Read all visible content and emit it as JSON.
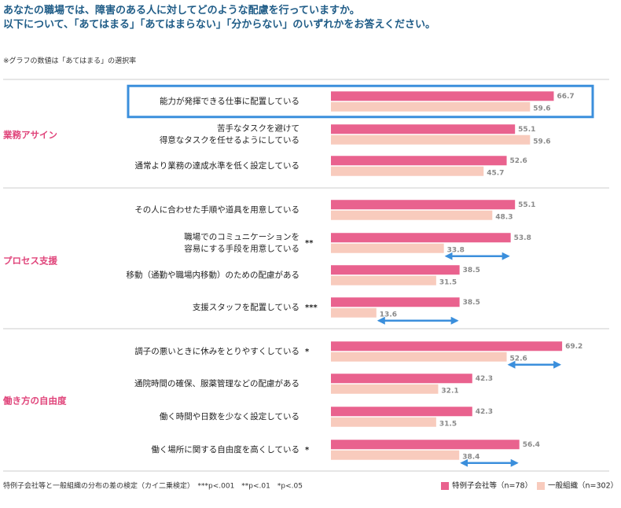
{
  "title_line1": "あなたの職場では、障害のある人に対してどのような配慮を行っていますか。",
  "title_line2": "以下について、「あてはまる」「あてはまらない」「分からない」のいずれかをお答えください。",
  "note": "※グラフの数値は「あてはまる」の選択率",
  "footnote": "特例子会社等と一般組織の分布の差の検定（カイ二乗検定）　***p<.001　**p<.01　*p<.05",
  "colors": {
    "series1": "#e9628e",
    "series2": "#f8cbbd",
    "highlight": "#3b8fdc",
    "arrow": "#3b8fdc",
    "divider": "#bbbbbb",
    "section": "#e0457b"
  },
  "chart_data": {
    "type": "bar",
    "orientation": "horizontal",
    "xlim": [
      0,
      100
    ],
    "series": [
      {
        "name": "特例子会社等（n=78）"
      },
      {
        "name": "一般組織（n=302）"
      }
    ],
    "groups": [
      {
        "name": "業務アサイン",
        "items": [
          {
            "label": [
              "能力が発揮できる仕事に配置している"
            ],
            "sig": "",
            "values": [
              66.7,
              59.6
            ],
            "highlight": true,
            "arrow": false
          },
          {
            "label": [
              "苦手なタスクを避けて",
              "得意なタスクを任せるようにしている"
            ],
            "sig": "",
            "values": [
              55.1,
              59.6
            ],
            "highlight": false,
            "arrow": false
          },
          {
            "label": [
              "通常より業務の達成水準を低く設定している"
            ],
            "sig": "",
            "values": [
              52.6,
              45.7
            ],
            "highlight": false,
            "arrow": false
          }
        ]
      },
      {
        "name": "プロセス支援",
        "items": [
          {
            "label": [
              "その人に合わせた手順や道具を用意している"
            ],
            "sig": "",
            "values": [
              55.1,
              48.3
            ],
            "highlight": false,
            "arrow": false
          },
          {
            "label": [
              "職場でのコミュニケーションを",
              "容易にする手段を用意している"
            ],
            "sig": "**",
            "values": [
              53.8,
              33.8
            ],
            "highlight": false,
            "arrow": true
          },
          {
            "label": [
              "移動（通勤や職場内移動）のための配慮がある"
            ],
            "sig": "",
            "values": [
              38.5,
              31.5
            ],
            "highlight": false,
            "arrow": false
          },
          {
            "label": [
              "支援スタッフを配置している"
            ],
            "sig": "***",
            "values": [
              38.5,
              13.6
            ],
            "highlight": false,
            "arrow": true
          }
        ]
      },
      {
        "name": "働き方の自由度",
        "items": [
          {
            "label": [
              "調子の悪いときに休みをとりやすくしている"
            ],
            "sig": "*",
            "values": [
              69.2,
              52.6
            ],
            "highlight": false,
            "arrow": true
          },
          {
            "label": [
              "通院時間の確保、服薬管理などの配慮がある"
            ],
            "sig": "",
            "values": [
              42.3,
              32.1
            ],
            "highlight": false,
            "arrow": false
          },
          {
            "label": [
              "働く時間や日数を少なく設定している"
            ],
            "sig": "",
            "values": [
              42.3,
              31.5
            ],
            "highlight": false,
            "arrow": false
          },
          {
            "label": [
              "働く場所に関する自由度を高くしている"
            ],
            "sig": "*",
            "values": [
              56.4,
              38.4
            ],
            "highlight": false,
            "arrow": true
          }
        ]
      }
    ]
  }
}
